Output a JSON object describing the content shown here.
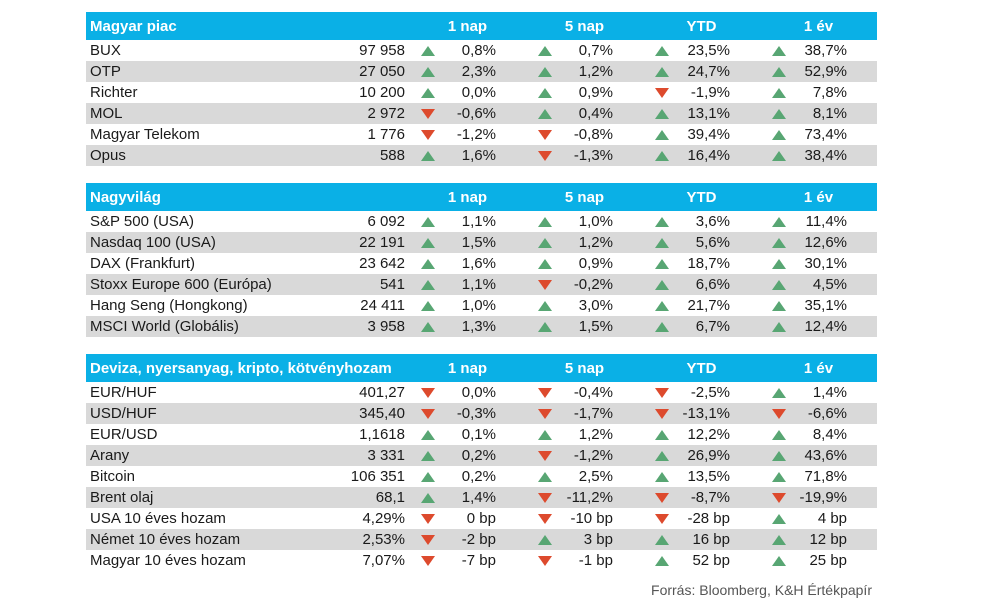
{
  "colors": {
    "header_bg": "#0ab0e6",
    "alt_row_bg": "#d9d9d9",
    "up": "#58a673",
    "down": "#dd4a2d"
  },
  "columns": [
    "1 nap",
    "5 nap",
    "YTD",
    "1 év"
  ],
  "sections": [
    {
      "title": "Magyar piac",
      "rows": [
        {
          "name": "BUX",
          "value": "97 958",
          "changes": [
            {
              "v": "0,8%",
              "d": "up"
            },
            {
              "v": "0,7%",
              "d": "up"
            },
            {
              "v": "23,5%",
              "d": "up"
            },
            {
              "v": "38,7%",
              "d": "up"
            }
          ]
        },
        {
          "name": "OTP",
          "value": "27 050",
          "changes": [
            {
              "v": "2,3%",
              "d": "up"
            },
            {
              "v": "1,2%",
              "d": "up"
            },
            {
              "v": "24,7%",
              "d": "up"
            },
            {
              "v": "52,9%",
              "d": "up"
            }
          ]
        },
        {
          "name": "Richter",
          "value": "10 200",
          "changes": [
            {
              "v": "0,0%",
              "d": "up"
            },
            {
              "v": "0,9%",
              "d": "up"
            },
            {
              "v": "-1,9%",
              "d": "down"
            },
            {
              "v": "7,8%",
              "d": "up"
            }
          ]
        },
        {
          "name": "MOL",
          "value": "2 972",
          "changes": [
            {
              "v": "-0,6%",
              "d": "down"
            },
            {
              "v": "0,4%",
              "d": "up"
            },
            {
              "v": "13,1%",
              "d": "up"
            },
            {
              "v": "8,1%",
              "d": "up"
            }
          ]
        },
        {
          "name": "Magyar Telekom",
          "value": "1 776",
          "changes": [
            {
              "v": "-1,2%",
              "d": "down"
            },
            {
              "v": "-0,8%",
              "d": "down"
            },
            {
              "v": "39,4%",
              "d": "up"
            },
            {
              "v": "73,4%",
              "d": "up"
            }
          ]
        },
        {
          "name": "Opus",
          "value": "588",
          "changes": [
            {
              "v": "1,6%",
              "d": "up"
            },
            {
              "v": "-1,3%",
              "d": "down"
            },
            {
              "v": "16,4%",
              "d": "up"
            },
            {
              "v": "38,4%",
              "d": "up"
            }
          ]
        }
      ]
    },
    {
      "title": "Nagyvilág",
      "rows": [
        {
          "name": "S&P 500 (USA)",
          "value": "6 092",
          "changes": [
            {
              "v": "1,1%",
              "d": "up"
            },
            {
              "v": "1,0%",
              "d": "up"
            },
            {
              "v": "3,6%",
              "d": "up"
            },
            {
              "v": "11,4%",
              "d": "up"
            }
          ]
        },
        {
          "name": "Nasdaq 100 (USA)",
          "value": "22 191",
          "changes": [
            {
              "v": "1,5%",
              "d": "up"
            },
            {
              "v": "1,2%",
              "d": "up"
            },
            {
              "v": "5,6%",
              "d": "up"
            },
            {
              "v": "12,6%",
              "d": "up"
            }
          ]
        },
        {
          "name": "DAX (Frankfurt)",
          "value": "23 642",
          "changes": [
            {
              "v": "1,6%",
              "d": "up"
            },
            {
              "v": "0,9%",
              "d": "up"
            },
            {
              "v": "18,7%",
              "d": "up"
            },
            {
              "v": "30,1%",
              "d": "up"
            }
          ]
        },
        {
          "name": "Stoxx Europe 600 (Európa)",
          "value": "541",
          "changes": [
            {
              "v": "1,1%",
              "d": "up"
            },
            {
              "v": "-0,2%",
              "d": "down"
            },
            {
              "v": "6,6%",
              "d": "up"
            },
            {
              "v": "4,5%",
              "d": "up"
            }
          ]
        },
        {
          "name": "Hang Seng (Hongkong)",
          "value": "24 411",
          "changes": [
            {
              "v": "1,0%",
              "d": "up"
            },
            {
              "v": "3,0%",
              "d": "up"
            },
            {
              "v": "21,7%",
              "d": "up"
            },
            {
              "v": "35,1%",
              "d": "up"
            }
          ]
        },
        {
          "name": "MSCI World (Globális)",
          "value": "3 958",
          "changes": [
            {
              "v": "1,3%",
              "d": "up"
            },
            {
              "v": "1,5%",
              "d": "up"
            },
            {
              "v": "6,7%",
              "d": "up"
            },
            {
              "v": "12,4%",
              "d": "up"
            }
          ]
        }
      ]
    },
    {
      "title": "Deviza, nyersanyag, kripto, kötvényhozam",
      "rows": [
        {
          "name": "EUR/HUF",
          "value": "401,27",
          "changes": [
            {
              "v": "0,0%",
              "d": "down"
            },
            {
              "v": "-0,4%",
              "d": "down"
            },
            {
              "v": "-2,5%",
              "d": "down"
            },
            {
              "v": "1,4%",
              "d": "up"
            }
          ]
        },
        {
          "name": "USD/HUF",
          "value": "345,40",
          "changes": [
            {
              "v": "-0,3%",
              "d": "down"
            },
            {
              "v": "-1,7%",
              "d": "down"
            },
            {
              "v": "-13,1%",
              "d": "down"
            },
            {
              "v": "-6,6%",
              "d": "down"
            }
          ]
        },
        {
          "name": "EUR/USD",
          "value": "1,1618",
          "changes": [
            {
              "v": "0,1%",
              "d": "up"
            },
            {
              "v": "1,2%",
              "d": "up"
            },
            {
              "v": "12,2%",
              "d": "up"
            },
            {
              "v": "8,4%",
              "d": "up"
            }
          ]
        },
        {
          "name": "Arany",
          "value": "3 331",
          "changes": [
            {
              "v": "0,2%",
              "d": "up"
            },
            {
              "v": "-1,2%",
              "d": "down"
            },
            {
              "v": "26,9%",
              "d": "up"
            },
            {
              "v": "43,6%",
              "d": "up"
            }
          ]
        },
        {
          "name": "Bitcoin",
          "value": "106 351",
          "changes": [
            {
              "v": "0,2%",
              "d": "up"
            },
            {
              "v": "2,5%",
              "d": "up"
            },
            {
              "v": "13,5%",
              "d": "up"
            },
            {
              "v": "71,8%",
              "d": "up"
            }
          ]
        },
        {
          "name": "Brent olaj",
          "value": "68,1",
          "changes": [
            {
              "v": "1,4%",
              "d": "up"
            },
            {
              "v": "-11,2%",
              "d": "down"
            },
            {
              "v": "-8,7%",
              "d": "down"
            },
            {
              "v": "-19,9%",
              "d": "down"
            }
          ]
        },
        {
          "name": "USA 10 éves hozam",
          "value": "4,29%",
          "changes": [
            {
              "v": "0 bp",
              "d": "down"
            },
            {
              "v": "-10 bp",
              "d": "down"
            },
            {
              "v": "-28 bp",
              "d": "down"
            },
            {
              "v": "4 bp",
              "d": "up"
            }
          ]
        },
        {
          "name": "Német 10 éves hozam",
          "value": "2,53%",
          "changes": [
            {
              "v": "-2 bp",
              "d": "down"
            },
            {
              "v": "3 bp",
              "d": "up"
            },
            {
              "v": "16 bp",
              "d": "up"
            },
            {
              "v": "12 bp",
              "d": "up"
            }
          ]
        },
        {
          "name": "Magyar 10 éves hozam",
          "value": "7,07%",
          "changes": [
            {
              "v": "-7 bp",
              "d": "down"
            },
            {
              "v": "-1 bp",
              "d": "down"
            },
            {
              "v": "52 bp",
              "d": "up"
            },
            {
              "v": "25 bp",
              "d": "up"
            }
          ]
        }
      ]
    }
  ],
  "source": "Forrás: Bloomberg, K&H Értékpapír"
}
